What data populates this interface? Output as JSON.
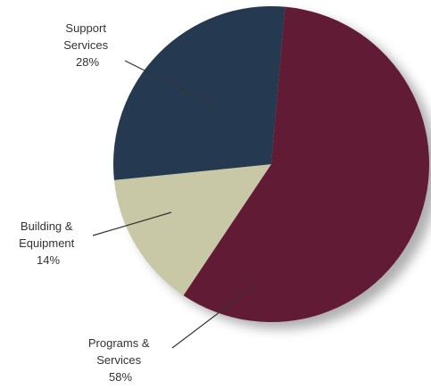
{
  "chart_data": {
    "type": "pie",
    "title": "",
    "slices": [
      {
        "name": "Programs & Services",
        "label_lines": [
          "Programs &",
          "Services"
        ],
        "value": 58,
        "value_label": "58%",
        "color": "#621b34"
      },
      {
        "name": "Building & Equipment",
        "label_lines": [
          "Building &",
          "Equipment"
        ],
        "value": 14,
        "value_label": "14%",
        "color": "#c8c8a6"
      },
      {
        "name": "Support Services",
        "label_lines": [
          "Support",
          "Services"
        ],
        "value": 28,
        "value_label": "28%",
        "color": "#253a50"
      }
    ],
    "legend": "none",
    "shadow": true
  }
}
